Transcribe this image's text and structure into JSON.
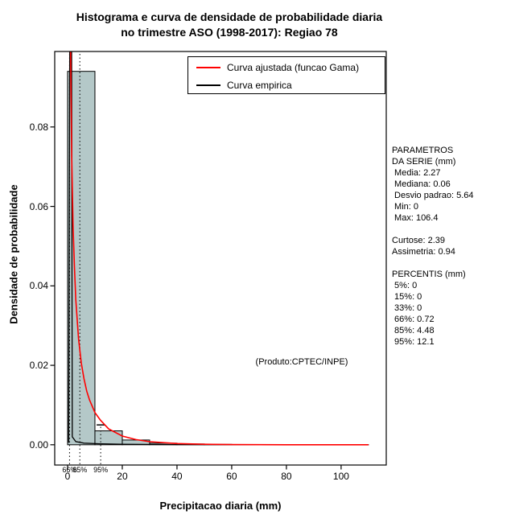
{
  "chart_data": {
    "type": "histogram",
    "title": "Histograma e curva de densidade de probabilidade diaria no trimestre ASO (1998-2017): Regiao 78",
    "title_line1": "Histograma e curva de densidade de probabilidade diaria",
    "title_line2": "no trimestre ASO (1998-2017): Regiao 78",
    "xlabel": "Precipitacao diaria (mm)",
    "ylabel": "Densidade de probabilidade",
    "xlim": [
      0,
      110
    ],
    "ylim": [
      0,
      0.099
    ],
    "x_ticks": [
      0,
      20,
      40,
      60,
      80,
      100
    ],
    "y_ticks": [
      0,
      0.02,
      0.04,
      0.06,
      0.08
    ],
    "y_tick_labels": [
      "0.00",
      "0.02",
      "0.04",
      "0.06",
      "0.08"
    ],
    "grid": false,
    "legend_position": "top",
    "histogram": {
      "bin_start": 0,
      "bin_width": 10,
      "densities": [
        0.094,
        0.0035,
        0.0012,
        0.0004,
        0.0002,
        0.0001,
        5e-05,
        3e-05,
        2e-05,
        1e-05,
        5e-06
      ],
      "fill": "#b4c8c8",
      "stroke": "#000000"
    },
    "gamma_curve": {
      "name": "Curva ajustada (funcao Gama)",
      "color": "#ff0000",
      "points": [
        [
          0.2,
          0.431
        ],
        [
          0.3,
          0.31
        ],
        [
          0.5,
          0.196
        ],
        [
          0.7,
          0.148
        ],
        [
          1,
          0.106
        ],
        [
          1.5,
          0.0726
        ],
        [
          2,
          0.0551
        ],
        [
          2.5,
          0.0448
        ],
        [
          3,
          0.0365
        ],
        [
          4,
          0.0267
        ],
        [
          5,
          0.0206
        ],
        [
          6,
          0.0166
        ],
        [
          7,
          0.0135
        ],
        [
          8,
          0.0113
        ],
        [
          10,
          0.0081
        ],
        [
          12,
          0.0062
        ],
        [
          15,
          0.004
        ],
        [
          20,
          0.0022
        ],
        [
          25,
          0.0013
        ],
        [
          30,
          0.00077
        ],
        [
          40,
          0.0003
        ],
        [
          50,
          0.00012
        ],
        [
          60,
          5e-05
        ],
        [
          80,
          1e-05
        ],
        [
          100,
          2e-06
        ],
        [
          110,
          1e-06
        ]
      ]
    },
    "empirical_curve": {
      "name": "Curva empirica",
      "color": "#000000",
      "points": [
        [
          0.4,
          0.0005
        ],
        [
          1.0,
          0.15
        ],
        [
          1.35,
          0.15
        ],
        [
          1.7,
          0.002
        ],
        [
          3,
          0.0008
        ],
        [
          6,
          0.0004
        ],
        [
          12,
          0.00025
        ],
        [
          20,
          0.00012
        ],
        [
          40,
          5e-05
        ],
        [
          110,
          2e-05
        ]
      ]
    },
    "percentile_lines": [
      {
        "label": "66%",
        "x": 0.72,
        "full_height": true
      },
      {
        "label": "85%",
        "x": 4.48,
        "full_height": true
      },
      {
        "label": "95%",
        "x": 12.1,
        "full_height": false,
        "top": 0.005
      }
    ],
    "legend": [
      {
        "label": "Curva ajustada (funcao Gama)",
        "color": "#ff0000"
      },
      {
        "label": "Curva empirica",
        "color": "#000000"
      }
    ],
    "annotation": "(Produto:CPTEC/INPE)"
  },
  "side_panel": {
    "lines": [
      "PARAMETROS",
      "DA SERIE (mm)",
      " Media: 2.27",
      " Mediana: 0.06",
      " Desvio padrao: 5.64",
      " Min: 0",
      " Max: 106.4",
      "",
      "Curtose: 2.39",
      "Assimetria: 0.94",
      "",
      "PERCENTIS (mm)",
      " 5%: 0",
      " 15%: 0",
      " 33%: 0",
      " 66%: 0.72",
      " 85%: 4.48",
      " 95%: 12.1"
    ]
  }
}
